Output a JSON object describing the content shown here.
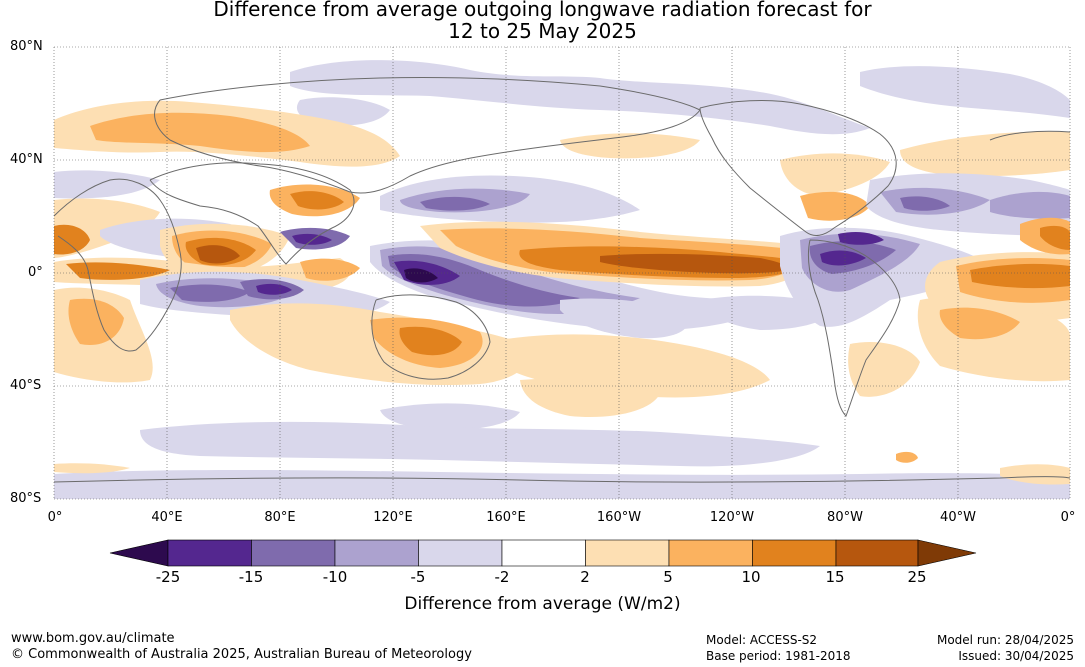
{
  "title": {
    "line1": "Difference from average outgoing longwave radiation forecast for",
    "line2": "12 to 25 May 2025"
  },
  "map": {
    "lat_labels": [
      "80°N",
      "40°N",
      "0°",
      "40°S",
      "80°S"
    ],
    "lon_labels": [
      "0°",
      "40°E",
      "80°E",
      "120°E",
      "160°E",
      "160°W",
      "120°W",
      "80°W",
      "40°W",
      "0°"
    ]
  },
  "colorbar": {
    "title": "Difference from average (W/m2)",
    "ticks": [
      "-25",
      "-15",
      "-10",
      "-5",
      "-2",
      "2",
      "5",
      "10",
      "15",
      "25"
    ],
    "colors": {
      "below_min": "#2d0a4e",
      "c1": "#54278f",
      "c2": "#7f6bad",
      "c3": "#aca2cf",
      "c4": "#d9d7eb",
      "c5": "#ffffff",
      "c6": "#fddfb3",
      "c7": "#fbb25f",
      "c8": "#e1821e",
      "c9": "#b6570e",
      "above_max": "#7f3a06"
    }
  },
  "footer": {
    "website": "www.bom.gov.au/climate",
    "copyright": "© Commonwealth of Australia 2025, Australian Bureau of Meteorology",
    "model": "Model: ACCESS-S2",
    "base_period": "Base period: 1981-2018",
    "model_run": "Model run: 28/04/2025",
    "issued": "Issued: 30/04/2025"
  }
}
